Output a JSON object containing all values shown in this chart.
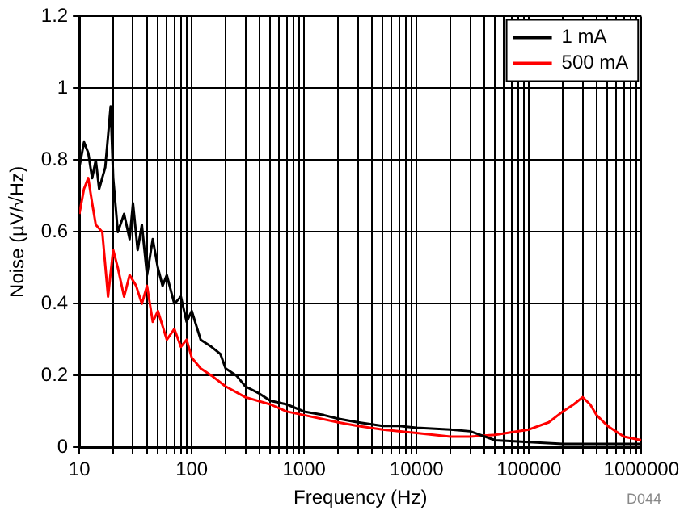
{
  "chart_data": {
    "type": "line",
    "xlabel": "Frequency (Hz)",
    "ylabel": "Noise (µV/√Hz)",
    "log": "x",
    "xlim": [
      10,
      1000000
    ],
    "xticks": [
      10,
      {
        "value": 20,
        "label": null
      },
      {
        "value": 30,
        "label": null
      },
      {
        "value": 40,
        "label": null
      },
      {
        "value": 50,
        "label": null
      },
      {
        "value": 60,
        "label": null
      },
      {
        "value": 70,
        "label": null
      },
      {
        "value": 80,
        "label": null
      },
      {
        "value": 90,
        "label": null
      },
      100,
      {
        "value": 200,
        "label": null
      },
      {
        "value": 300,
        "label": null
      },
      {
        "value": 400,
        "label": null
      },
      {
        "value": 500,
        "label": null
      },
      {
        "value": 600,
        "label": null
      },
      {
        "value": 700,
        "label": null
      },
      {
        "value": 800,
        "label": null
      },
      {
        "value": 900,
        "label": null
      },
      1000,
      {
        "value": 2000,
        "label": null
      },
      {
        "value": 3000,
        "label": null
      },
      {
        "value": 4000,
        "label": null
      },
      {
        "value": 5000,
        "label": null
      },
      {
        "value": 6000,
        "label": null
      },
      {
        "value": 7000,
        "label": null
      },
      {
        "value": 8000,
        "label": null
      },
      {
        "value": 9000,
        "label": null
      },
      10000,
      {
        "value": 20000,
        "label": null
      },
      {
        "value": 30000,
        "label": null
      },
      {
        "value": 40000,
        "label": null
      },
      {
        "value": 50000,
        "label": null
      },
      {
        "value": 60000,
        "label": null
      },
      {
        "value": 70000,
        "label": null
      },
      {
        "value": 80000,
        "label": null
      },
      {
        "value": 90000,
        "label": null
      },
      100000,
      {
        "value": 200000,
        "label": null
      },
      {
        "value": 300000,
        "label": null
      },
      {
        "value": 400000,
        "label": null
      },
      {
        "value": 500000,
        "label": null
      },
      {
        "value": 600000,
        "label": null
      },
      {
        "value": 700000,
        "label": null
      },
      {
        "value": 800000,
        "label": null
      },
      {
        "value": 900000,
        "label": null
      },
      1000000
    ],
    "ylim": [
      0,
      1.2
    ],
    "yticks": [
      0,
      0.2,
      0.4,
      0.6,
      0.8,
      1,
      1.2
    ],
    "grid": true,
    "legend": "top right",
    "marker": "none",
    "line_style": "solid",
    "annotations": [
      "D044"
    ],
    "series": [
      {
        "name": "1 mA",
        "color": "#000000",
        "x": [
          10,
          11,
          12,
          13,
          14,
          15,
          17,
          19,
          20,
          22,
          25,
          28,
          30,
          33,
          36,
          40,
          45,
          50,
          55,
          60,
          70,
          80,
          90,
          100,
          120,
          150,
          180,
          200,
          250,
          300,
          400,
          500,
          700,
          1000,
          1500,
          2000,
          3000,
          5000,
          7000,
          10000,
          20000,
          30000,
          50000,
          100000,
          200000,
          500000,
          1000000
        ],
        "values": [
          0.78,
          0.85,
          0.82,
          0.75,
          0.8,
          0.72,
          0.78,
          0.95,
          0.75,
          0.6,
          0.65,
          0.58,
          0.68,
          0.55,
          0.62,
          0.48,
          0.58,
          0.5,
          0.45,
          0.48,
          0.4,
          0.42,
          0.35,
          0.38,
          0.3,
          0.28,
          0.26,
          0.22,
          0.2,
          0.17,
          0.15,
          0.13,
          0.12,
          0.1,
          0.09,
          0.08,
          0.07,
          0.06,
          0.06,
          0.055,
          0.05,
          0.045,
          0.02,
          0.015,
          0.01,
          0.01,
          0.01
        ]
      },
      {
        "name": "500 mA",
        "color": "#ff0000",
        "x": [
          10,
          11,
          12,
          13,
          14,
          16,
          18,
          20,
          22,
          25,
          28,
          32,
          36,
          40,
          45,
          50,
          60,
          70,
          80,
          90,
          100,
          120,
          150,
          200,
          300,
          500,
          700,
          1000,
          2000,
          3000,
          5000,
          10000,
          20000,
          30000,
          50000,
          100000,
          150000,
          200000,
          250000,
          300000,
          350000,
          400000,
          500000,
          700000,
          1000000
        ],
        "values": [
          0.65,
          0.72,
          0.75,
          0.68,
          0.62,
          0.6,
          0.42,
          0.55,
          0.5,
          0.42,
          0.48,
          0.45,
          0.4,
          0.45,
          0.35,
          0.38,
          0.3,
          0.33,
          0.28,
          0.3,
          0.25,
          0.22,
          0.2,
          0.17,
          0.14,
          0.12,
          0.1,
          0.09,
          0.07,
          0.06,
          0.05,
          0.04,
          0.03,
          0.03,
          0.035,
          0.05,
          0.07,
          0.1,
          0.12,
          0.14,
          0.12,
          0.09,
          0.06,
          0.03,
          0.02
        ]
      }
    ]
  }
}
